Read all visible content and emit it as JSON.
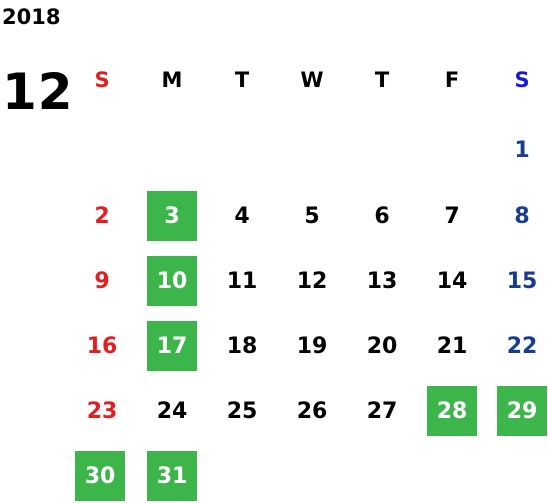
{
  "calendar": {
    "year": "2018",
    "month": "12",
    "weekdays": [
      "S",
      "M",
      "T",
      "W",
      "T",
      "F",
      "S"
    ],
    "weeks": [
      [
        null,
        null,
        null,
        null,
        null,
        null,
        {
          "d": "1"
        }
      ],
      [
        {
          "d": "2"
        },
        {
          "d": "3",
          "hl": true
        },
        {
          "d": "4"
        },
        {
          "d": "5"
        },
        {
          "d": "6"
        },
        {
          "d": "7"
        },
        {
          "d": "8"
        }
      ],
      [
        {
          "d": "9"
        },
        {
          "d": "10",
          "hl": true
        },
        {
          "d": "11"
        },
        {
          "d": "12"
        },
        {
          "d": "13"
        },
        {
          "d": "14"
        },
        {
          "d": "15"
        }
      ],
      [
        {
          "d": "16"
        },
        {
          "d": "17",
          "hl": true
        },
        {
          "d": "18"
        },
        {
          "d": "19"
        },
        {
          "d": "20"
        },
        {
          "d": "21"
        },
        {
          "d": "22"
        }
      ],
      [
        {
          "d": "23"
        },
        {
          "d": "24"
        },
        {
          "d": "25"
        },
        {
          "d": "26"
        },
        {
          "d": "27"
        },
        {
          "d": "28",
          "hl": true
        },
        {
          "d": "29",
          "hl": true
        }
      ],
      [
        {
          "d": "30",
          "hl": true
        },
        {
          "d": "31",
          "hl": true
        },
        null,
        null,
        null,
        null,
        null
      ]
    ]
  },
  "colors": {
    "sunday": "#e02020",
    "saturday": "#1a3c8f",
    "saturday_header": "#1a1ad6",
    "highlight": "#3cb54a"
  }
}
